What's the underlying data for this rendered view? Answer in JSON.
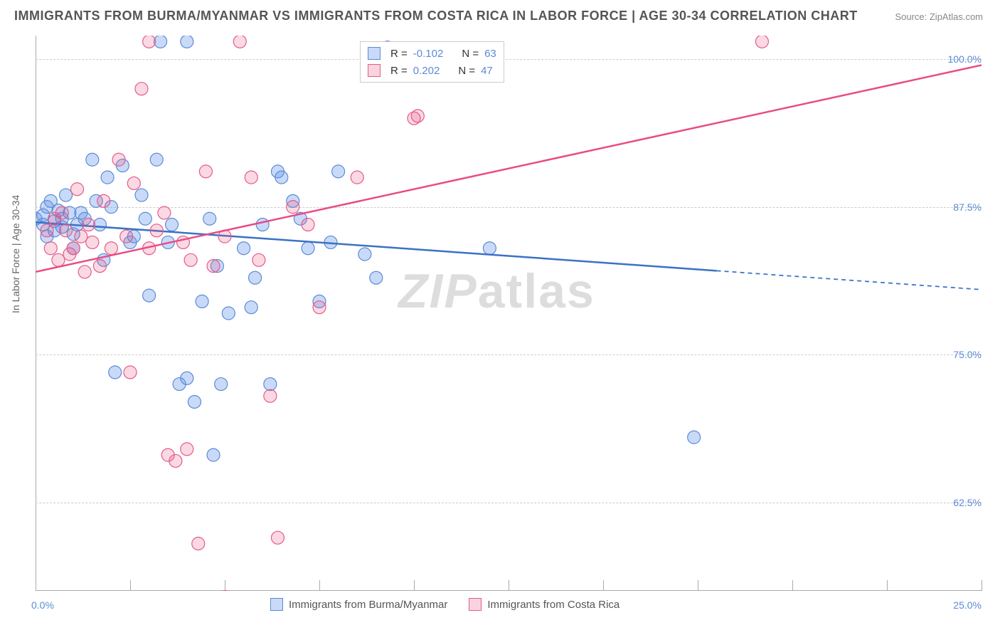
{
  "title": "IMMIGRANTS FROM BURMA/MYANMAR VS IMMIGRANTS FROM COSTA RICA IN LABOR FORCE | AGE 30-34 CORRELATION CHART",
  "source": "Source: ZipAtlas.com",
  "ylabel": "In Labor Force | Age 30-34",
  "watermark_a": "ZIP",
  "watermark_b": "atlas",
  "chart": {
    "type": "scatter",
    "xlim": [
      0,
      25
    ],
    "ylim": [
      55,
      102
    ],
    "y_ticks": [
      62.5,
      75.0,
      87.5,
      100.0
    ],
    "y_tick_labels": [
      "62.5%",
      "75.0%",
      "87.5%",
      "100.0%"
    ],
    "x_ticks": [
      0,
      2.5,
      5,
      7.5,
      10,
      12.5,
      15,
      17.5,
      20,
      22.5,
      25
    ],
    "x_first_label": "0.0%",
    "x_last_label": "25.0%",
    "grid_color": "#cccccc",
    "axis_color": "#aaaaaa",
    "background_color": "#ffffff",
    "series": [
      {
        "name": "Immigrants from Burma/Myanmar",
        "marker_color": "rgba(100,149,237,0.35)",
        "marker_border": "#5b8bd4",
        "marker_radius": 9,
        "trend_color": "#3b72c4",
        "trend_width": 2.5,
        "trend": {
          "x0": 0,
          "y0": 86.2,
          "x1": 25,
          "y1": 80.5,
          "solid_until_x": 18.0
        },
        "R": "-0.102",
        "N": "63",
        "points": [
          [
            0.0,
            86.5
          ],
          [
            0.2,
            86.0
          ],
          [
            0.2,
            86.8
          ],
          [
            0.3,
            87.5
          ],
          [
            0.3,
            85.0
          ],
          [
            0.4,
            88.0
          ],
          [
            0.5,
            86.3
          ],
          [
            0.5,
            85.5
          ],
          [
            0.6,
            87.2
          ],
          [
            0.7,
            85.8
          ],
          [
            0.7,
            86.5
          ],
          [
            0.8,
            88.5
          ],
          [
            0.9,
            87.0
          ],
          [
            1.0,
            85.2
          ],
          [
            1.0,
            84.0
          ],
          [
            1.1,
            86.0
          ],
          [
            1.2,
            87.0
          ],
          [
            1.3,
            86.5
          ],
          [
            1.5,
            91.5
          ],
          [
            1.6,
            88.0
          ],
          [
            1.7,
            86.0
          ],
          [
            1.8,
            83.0
          ],
          [
            1.9,
            90.0
          ],
          [
            2.0,
            87.5
          ],
          [
            2.1,
            73.5
          ],
          [
            2.3,
            91.0
          ],
          [
            2.5,
            84.5
          ],
          [
            2.6,
            85.0
          ],
          [
            2.8,
            88.5
          ],
          [
            2.9,
            86.5
          ],
          [
            3.0,
            80.0
          ],
          [
            3.2,
            91.5
          ],
          [
            3.3,
            101.5
          ],
          [
            3.5,
            84.5
          ],
          [
            3.6,
            86.0
          ],
          [
            3.8,
            72.5
          ],
          [
            4.0,
            101.5
          ],
          [
            4.0,
            73.0
          ],
          [
            4.2,
            71.0
          ],
          [
            4.4,
            79.5
          ],
          [
            4.6,
            86.5
          ],
          [
            4.7,
            66.5
          ],
          [
            4.8,
            82.5
          ],
          [
            4.9,
            72.5
          ],
          [
            5.1,
            78.5
          ],
          [
            5.5,
            84.0
          ],
          [
            5.7,
            79.0
          ],
          [
            5.8,
            81.5
          ],
          [
            6.0,
            86.0
          ],
          [
            6.2,
            72.5
          ],
          [
            6.4,
            90.5
          ],
          [
            6.8,
            88.0
          ],
          [
            7.0,
            86.5
          ],
          [
            7.2,
            84.0
          ],
          [
            7.5,
            79.5
          ],
          [
            8.0,
            90.5
          ],
          [
            8.7,
            83.5
          ],
          [
            9.0,
            81.5
          ],
          [
            9.3,
            101.0
          ],
          [
            12.0,
            84.0
          ],
          [
            17.4,
            68.0
          ],
          [
            7.8,
            84.5
          ],
          [
            6.5,
            90.0
          ]
        ]
      },
      {
        "name": "Immigrants from Costa Rica",
        "marker_color": "rgba(231,84,128,0.22)",
        "marker_border": "#e55a8a",
        "marker_radius": 9,
        "trend_color": "#e94b86",
        "trend_width": 2.5,
        "trend": {
          "x0": 0,
          "y0": 82.0,
          "x1": 25,
          "y1": 99.5,
          "solid_until_x": 25
        },
        "R": "0.202",
        "N": "47",
        "points": [
          [
            0.3,
            85.5
          ],
          [
            0.4,
            84.0
          ],
          [
            0.5,
            86.5
          ],
          [
            0.6,
            83.0
          ],
          [
            0.7,
            87.0
          ],
          [
            0.8,
            85.5
          ],
          [
            0.9,
            83.5
          ],
          [
            1.0,
            84.0
          ],
          [
            1.1,
            89.0
          ],
          [
            1.2,
            85.0
          ],
          [
            1.3,
            82.0
          ],
          [
            1.4,
            86.0
          ],
          [
            1.5,
            84.5
          ],
          [
            1.7,
            82.5
          ],
          [
            1.8,
            88.0
          ],
          [
            2.0,
            84.0
          ],
          [
            2.2,
            91.5
          ],
          [
            2.4,
            85.0
          ],
          [
            2.5,
            73.5
          ],
          [
            2.6,
            89.5
          ],
          [
            2.8,
            97.5
          ],
          [
            3.0,
            84.0
          ],
          [
            3.0,
            101.5
          ],
          [
            3.2,
            85.5
          ],
          [
            3.4,
            87.0
          ],
          [
            3.5,
            66.5
          ],
          [
            3.7,
            66.0
          ],
          [
            3.9,
            84.5
          ],
          [
            4.1,
            83.0
          ],
          [
            4.3,
            59.0
          ],
          [
            4.5,
            90.5
          ],
          [
            4.7,
            82.5
          ],
          [
            5.0,
            54.5
          ],
          [
            5.0,
            85.0
          ],
          [
            5.4,
            101.5
          ],
          [
            5.7,
            90.0
          ],
          [
            5.9,
            83.0
          ],
          [
            6.2,
            71.5
          ],
          [
            6.4,
            59.5
          ],
          [
            6.8,
            87.5
          ],
          [
            7.2,
            86.0
          ],
          [
            7.5,
            79.0
          ],
          [
            8.5,
            90.0
          ],
          [
            10.0,
            95.0
          ],
          [
            10.1,
            95.2
          ],
          [
            19.2,
            101.5
          ],
          [
            4.0,
            67.0
          ]
        ]
      }
    ]
  },
  "legend_top": {
    "r_label": "R =",
    "n_label": "N ="
  },
  "legend_bottom": {
    "series1": "Immigrants from Burma/Myanmar",
    "series2": "Immigrants from Costa Rica"
  }
}
